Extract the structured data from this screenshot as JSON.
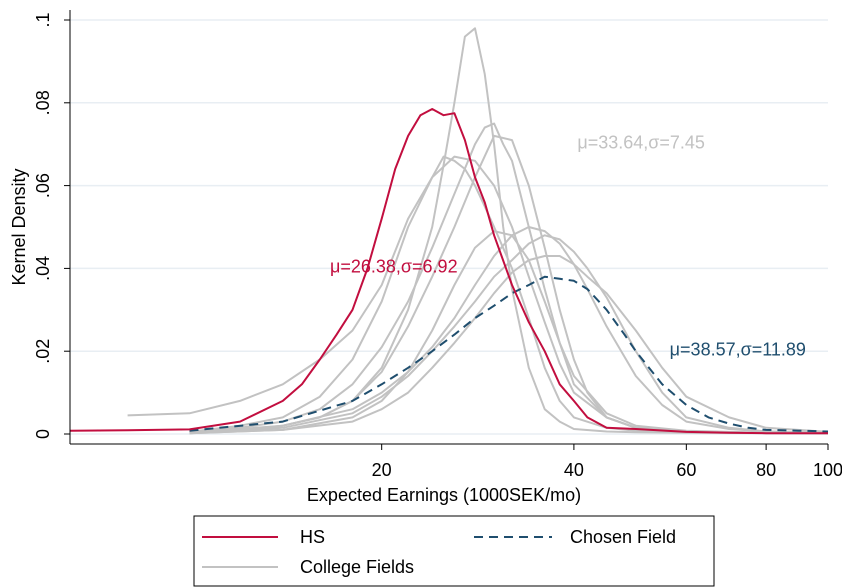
{
  "chart_data": {
    "type": "line",
    "xlabel": "Expected Earnings (1000SEK/mo)",
    "ylabel": "Kernel Density",
    "x_scale": "log",
    "xlim": [
      6.5,
      100
    ],
    "ylim": [
      0,
      0.1
    ],
    "x_ticks": [
      20,
      40,
      60,
      80,
      100
    ],
    "x_tick_labels": [
      "20",
      "40",
      "60",
      "80",
      "100"
    ],
    "y_ticks": [
      0,
      0.02,
      0.04,
      0.06,
      0.08,
      0.1
    ],
    "y_tick_labels": [
      "0",
      ".02",
      ".04",
      ".06",
      ".08",
      ".1"
    ],
    "grid": "horizontal",
    "legend_position": "bottom",
    "colors": {
      "hs": "#c20e3f",
      "chosen": "#1f4e6e",
      "college": "#c2c2c2"
    },
    "annotations": [
      {
        "text": "μ=26.38,σ=6.92",
        "series": "HS",
        "x": 16.6,
        "y": 0.039
      },
      {
        "text": "μ=33.64,σ=7.45",
        "series": "College Fields",
        "x": 40.5,
        "y": 0.069
      },
      {
        "text": "μ=38.57,σ=11.89",
        "series": "Chosen Field",
        "x": 56.5,
        "y": 0.019
      }
    ],
    "series": [
      {
        "name": "HS",
        "key": "hs",
        "x": [
          6.5,
          8,
          10,
          12,
          14,
          15,
          16,
          17,
          18,
          19,
          20,
          21,
          22,
          23,
          24,
          25,
          26,
          27,
          28,
          29,
          30,
          32,
          34,
          36,
          38,
          40,
          42,
          45,
          50,
          60,
          70,
          80,
          100
        ],
        "y": [
          0.0008,
          0.0009,
          0.0011,
          0.003,
          0.008,
          0.012,
          0.018,
          0.024,
          0.03,
          0.04,
          0.052,
          0.064,
          0.072,
          0.077,
          0.0785,
          0.077,
          0.0775,
          0.071,
          0.062,
          0.056,
          0.048,
          0.036,
          0.027,
          0.02,
          0.012,
          0.008,
          0.004,
          0.0015,
          0.0012,
          0.0005,
          0.0003,
          0.0002,
          0.0002
        ]
      },
      {
        "name": "Chosen Field",
        "key": "chosen",
        "x": [
          10,
          14,
          18,
          20,
          22,
          24,
          26,
          28,
          30,
          32,
          34,
          36,
          38,
          40,
          42,
          45,
          48,
          50,
          55,
          60,
          65,
          70,
          75,
          80,
          90,
          100
        ],
        "y": [
          0.0008,
          0.003,
          0.008,
          0.012,
          0.016,
          0.02,
          0.024,
          0.028,
          0.031,
          0.034,
          0.036,
          0.038,
          0.0375,
          0.037,
          0.035,
          0.03,
          0.024,
          0.02,
          0.012,
          0.007,
          0.004,
          0.0025,
          0.0015,
          0.001,
          0.0008,
          0.0006
        ]
      },
      {
        "name": "College Fields",
        "key": "college",
        "x": [
          10,
          12,
          14,
          16,
          18,
          20,
          22,
          24,
          25,
          26,
          27,
          28,
          29,
          30,
          31,
          32,
          34,
          36,
          38,
          40,
          45,
          50,
          60,
          80,
          100
        ],
        "y": [
          0.0003,
          0.0008,
          0.002,
          0.004,
          0.008,
          0.016,
          0.03,
          0.05,
          0.065,
          0.08,
          0.096,
          0.098,
          0.087,
          0.07,
          0.05,
          0.035,
          0.016,
          0.006,
          0.003,
          0.0012,
          0.0006,
          0.0004,
          0.0003,
          0.0002,
          0.0002
        ]
      },
      {
        "name": "College Fields",
        "key": "college",
        "x": [
          10,
          12,
          14,
          16,
          18,
          20,
          22,
          24,
          25,
          26,
          27,
          28,
          29,
          30,
          32,
          34,
          36,
          38,
          40,
          45,
          50,
          60,
          80,
          100
        ],
        "y": [
          0.0005,
          0.002,
          0.004,
          0.009,
          0.018,
          0.032,
          0.05,
          0.062,
          0.067,
          0.066,
          0.064,
          0.06,
          0.055,
          0.05,
          0.04,
          0.028,
          0.016,
          0.008,
          0.004,
          0.0015,
          0.0008,
          0.0005,
          0.0003,
          0.0002
        ]
      },
      {
        "name": "College Fields",
        "key": "college",
        "x": [
          10,
          12,
          14,
          16,
          18,
          20,
          22,
          24,
          26,
          28,
          29,
          30,
          31,
          32,
          34,
          36,
          38,
          40,
          45,
          50,
          60,
          80,
          100
        ],
        "y": [
          0.0004,
          0.0015,
          0.003,
          0.006,
          0.012,
          0.021,
          0.032,
          0.045,
          0.058,
          0.07,
          0.074,
          0.075,
          0.07,
          0.066,
          0.05,
          0.035,
          0.022,
          0.012,
          0.004,
          0.0015,
          0.0006,
          0.0003,
          0.0002
        ]
      },
      {
        "name": "College Fields",
        "key": "college",
        "x": [
          10,
          12,
          14,
          16,
          18,
          20,
          22,
          24,
          26,
          28,
          30,
          32,
          34,
          36,
          38,
          40,
          42,
          45,
          50,
          60,
          80,
          100
        ],
        "y": [
          0.0003,
          0.001,
          0.002,
          0.004,
          0.008,
          0.015,
          0.026,
          0.038,
          0.05,
          0.062,
          0.072,
          0.071,
          0.06,
          0.045,
          0.03,
          0.018,
          0.01,
          0.004,
          0.0015,
          0.0006,
          0.0003,
          0.0002
        ]
      },
      {
        "name": "College Fields",
        "key": "college",
        "x": [
          8,
          10,
          12,
          14,
          16,
          18,
          20,
          22,
          24,
          26,
          28,
          30,
          32,
          34,
          36,
          38,
          40,
          45,
          50,
          60,
          80,
          100
        ],
        "y": [
          0.0045,
          0.005,
          0.008,
          0.012,
          0.018,
          0.025,
          0.036,
          0.052,
          0.062,
          0.067,
          0.066,
          0.06,
          0.05,
          0.038,
          0.027,
          0.017,
          0.01,
          0.004,
          0.0015,
          0.0006,
          0.0003,
          0.0002
        ]
      },
      {
        "name": "College Fields",
        "key": "college",
        "x": [
          10,
          14,
          18,
          20,
          22,
          24,
          26,
          28,
          30,
          32,
          34,
          36,
          38,
          40,
          42,
          45,
          50,
          55,
          60,
          70,
          80,
          100
        ],
        "y": [
          0.0003,
          0.002,
          0.006,
          0.01,
          0.015,
          0.021,
          0.028,
          0.036,
          0.043,
          0.048,
          0.05,
          0.049,
          0.046,
          0.041,
          0.035,
          0.026,
          0.014,
          0.007,
          0.003,
          0.0012,
          0.0006,
          0.0003
        ]
      },
      {
        "name": "College Fields",
        "key": "college",
        "x": [
          10,
          14,
          18,
          20,
          22,
          24,
          26,
          28,
          30,
          32,
          34,
          36,
          38,
          40,
          42,
          45,
          50,
          55,
          60,
          70,
          80,
          100
        ],
        "y": [
          0.0002,
          0.0015,
          0.005,
          0.009,
          0.014,
          0.02,
          0.026,
          0.032,
          0.038,
          0.042,
          0.046,
          0.048,
          0.047,
          0.044,
          0.04,
          0.033,
          0.02,
          0.01,
          0.004,
          0.0015,
          0.0006,
          0.0003
        ]
      },
      {
        "name": "College Fields",
        "key": "college",
        "x": [
          10,
          14,
          18,
          20,
          22,
          24,
          26,
          28,
          30,
          32,
          34,
          36,
          38,
          40,
          42,
          45,
          50,
          55,
          60,
          70,
          80,
          100
        ],
        "y": [
          0.0002,
          0.001,
          0.003,
          0.006,
          0.01,
          0.016,
          0.022,
          0.028,
          0.034,
          0.039,
          0.042,
          0.043,
          0.043,
          0.041,
          0.038,
          0.034,
          0.025,
          0.016,
          0.009,
          0.004,
          0.0015,
          0.0005
        ]
      },
      {
        "name": "College Fields",
        "key": "college",
        "x": [
          10,
          14,
          18,
          20,
          22,
          24,
          26,
          28,
          30,
          32,
          34,
          36,
          38,
          40,
          45,
          50,
          60,
          80,
          100
        ],
        "y": [
          0.0002,
          0.001,
          0.004,
          0.008,
          0.015,
          0.025,
          0.036,
          0.045,
          0.049,
          0.048,
          0.042,
          0.032,
          0.022,
          0.014,
          0.005,
          0.002,
          0.0008,
          0.0003,
          0.0002
        ]
      }
    ],
    "legend": [
      {
        "label": "HS",
        "key": "hs"
      },
      {
        "label": "Chosen Field",
        "key": "chosen"
      },
      {
        "label": "College Fields",
        "key": "college"
      }
    ]
  }
}
